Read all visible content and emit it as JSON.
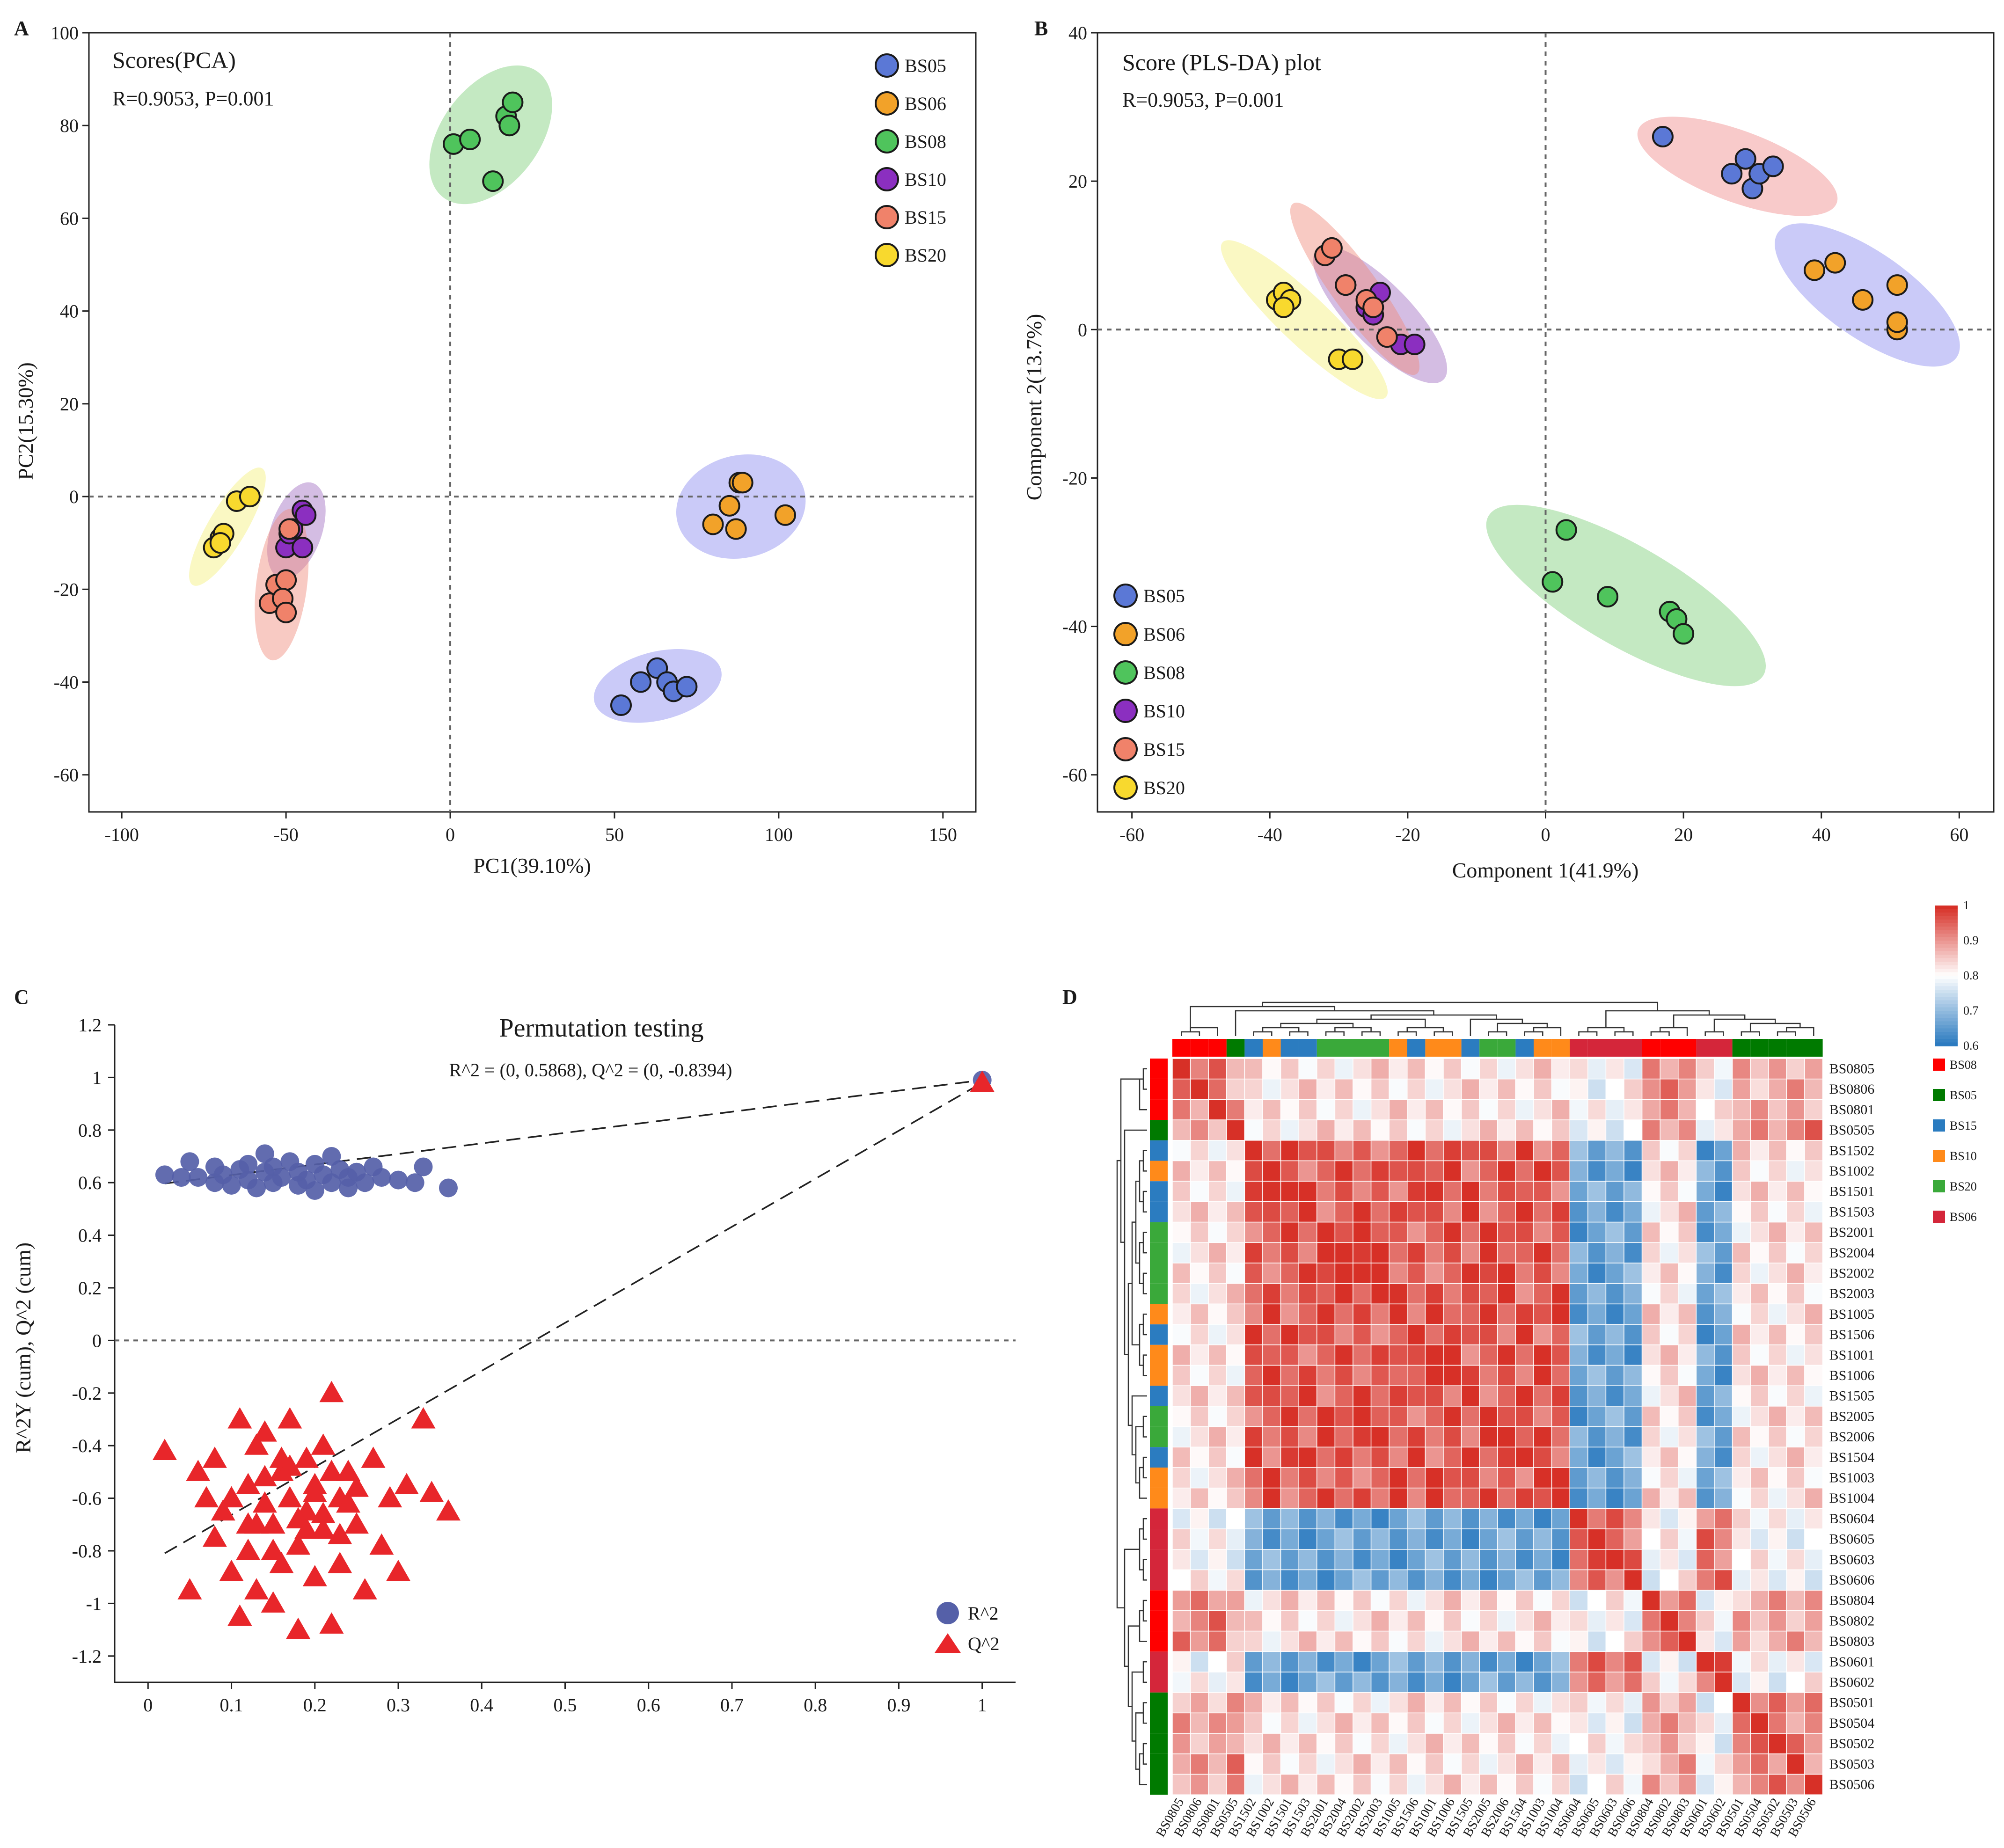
{
  "colors": {
    "BS05": "#5b78d6",
    "BS06": "#f2a229",
    "BS08": "#4fc45c",
    "BS10": "#8b2fc0",
    "BS15": "#f0826a",
    "BS20": "#f8d92e",
    "ell_BS05": "#8a8af0",
    "ell_BS06": "#8a8af0",
    "ell_BS08": "#7dcf78",
    "ell_BS10": "#a06cc0",
    "ell_BS15": "#f08a7a",
    "ell_BS20": "#f5ef7a",
    "ell_pls_BS05": "#f08a8a",
    "r2": "#5560a8",
    "q2": "#e8262a",
    "heat_high": "#d73027",
    "heat_mid": "#ffffff",
    "heat_low": "#2c7bc0"
  },
  "chart_data": [
    {
      "type": "scatter",
      "panel_label": "A",
      "title": "Scores(PCA)",
      "subtitle": "R=0.9053, P=0.001",
      "xlabel": "PC1(39.10%)",
      "ylabel": "PC2(15.30%)",
      "xlim": [
        -110,
        160
      ],
      "ylim": [
        -68,
        100
      ],
      "xticks": [
        -100,
        -50,
        0,
        50,
        100,
        150
      ],
      "yticks": [
        -60,
        -40,
        -20,
        0,
        20,
        40,
        60,
        80,
        100
      ],
      "legend": [
        "BS05",
        "BS06",
        "BS08",
        "BS10",
        "BS15",
        "BS20"
      ],
      "series": [
        {
          "name": "BS05",
          "x": [
            52,
            58,
            63,
            66,
            68,
            72
          ],
          "y": [
            -45,
            -40,
            -37,
            -40,
            -42,
            -41
          ]
        },
        {
          "name": "BS06",
          "x": [
            80,
            85,
            88,
            89,
            87,
            102
          ],
          "y": [
            -6,
            -2,
            3,
            3,
            -7,
            -4
          ]
        },
        {
          "name": "BS08",
          "x": [
            1,
            6,
            13,
            17,
            18,
            19
          ],
          "y": [
            76,
            77,
            68,
            82,
            80,
            85
          ]
        },
        {
          "name": "BS10",
          "x": [
            -50,
            -49,
            -48,
            -45,
            -44,
            -45
          ],
          "y": [
            -11,
            -8,
            -7,
            -3,
            -4,
            -11
          ]
        },
        {
          "name": "BS15",
          "x": [
            -55,
            -53,
            -50,
            -49,
            -51,
            -50
          ],
          "y": [
            -23,
            -19,
            -18,
            -7,
            -22,
            -25
          ]
        },
        {
          "name": "BS20",
          "x": [
            -72,
            -70,
            -69,
            -65,
            -61,
            -70
          ],
          "y": [
            -11,
            -9,
            -8,
            -1,
            0,
            -10
          ]
        }
      ]
    },
    {
      "type": "scatter",
      "panel_label": "B",
      "title": "Score (PLS-DA) plot",
      "subtitle": "R=0.9053, P=0.001",
      "xlabel": "Component 1(41.9%)",
      "ylabel": "Component 2(13.7%)",
      "xlim": [
        -65,
        65
      ],
      "ylim": [
        -65,
        40
      ],
      "xticks": [
        -60,
        -40,
        -20,
        0,
        20,
        40,
        60
      ],
      "yticks": [
        -60,
        -40,
        -20,
        0,
        20,
        40
      ],
      "legend": [
        "BS05",
        "BS06",
        "BS08",
        "BS10",
        "BS15",
        "BS20"
      ],
      "series": [
        {
          "name": "BS05",
          "x": [
            17,
            27,
            29,
            30,
            31,
            33
          ],
          "y": [
            26,
            21,
            23,
            19,
            21,
            22
          ]
        },
        {
          "name": "BS06",
          "x": [
            39,
            42,
            46,
            51,
            51,
            51
          ],
          "y": [
            8,
            9,
            4,
            6,
            0,
            1
          ]
        },
        {
          "name": "BS08",
          "x": [
            1,
            3,
            9,
            18,
            19,
            20
          ],
          "y": [
            -34,
            -27,
            -36,
            -38,
            -39,
            -41
          ]
        },
        {
          "name": "BS10",
          "x": [
            -29,
            -26,
            -25,
            -24,
            -21,
            -19
          ],
          "y": [
            6,
            3,
            2,
            5,
            -2,
            -2
          ]
        },
        {
          "name": "BS15",
          "x": [
            -32,
            -31,
            -29,
            -26,
            -23,
            -25
          ],
          "y": [
            10,
            11,
            6,
            4,
            -1,
            3
          ]
        },
        {
          "name": "BS20",
          "x": [
            -39,
            -38,
            -37,
            -30,
            -28,
            -38
          ],
          "y": [
            4,
            5,
            4,
            -4,
            -4,
            3
          ]
        }
      ]
    },
    {
      "type": "scatter",
      "panel_label": "C",
      "title": "Permutation testing",
      "subtitle": "R^2 = (0, 0.5868), Q^2 = (0, -0.8394)",
      "xlabel": "",
      "ylabel": "R^2Y (cum), Q^2 (cum)",
      "xlim": [
        -0.04,
        1.04
      ],
      "ylim": [
        -1.3,
        1.2
      ],
      "xticks": [
        0,
        0.1,
        0.2,
        0.3,
        0.4,
        0.5,
        0.6,
        0.7,
        0.8,
        0.9,
        1
      ],
      "yticks": [
        -1.2,
        -1,
        -0.8,
        -0.6,
        -0.4,
        -0.2,
        0,
        0.2,
        0.4,
        0.6,
        0.8,
        1,
        1.2
      ],
      "ytick_labels": [
        "-1.2",
        "-1",
        "-0.8",
        "-0.6",
        "-0.4",
        "-0.2",
        "0",
        "0.2",
        "0.4",
        "0.6",
        "0.8",
        "1",
        "1.2"
      ],
      "xtick_labels": [
        "0",
        "0.1",
        "0.2",
        "0.3",
        "0.4",
        "0.5",
        "0.6",
        "0.7",
        "0.8",
        "0.9",
        "1"
      ],
      "legend": [
        "R^2",
        "Q^2"
      ],
      "r2_line": {
        "intercept": 0.5868,
        "end": [
          1,
          0.99
        ]
      },
      "q2_line": {
        "intercept": -0.8394,
        "end": [
          1,
          0.98
        ]
      },
      "series": [
        {
          "name": "R^2",
          "marker": "circle",
          "x": [
            0.02,
            0.04,
            0.05,
            0.06,
            0.08,
            0.08,
            0.09,
            0.1,
            0.11,
            0.12,
            0.12,
            0.13,
            0.14,
            0.14,
            0.15,
            0.15,
            0.16,
            0.17,
            0.18,
            0.18,
            0.19,
            0.2,
            0.2,
            0.21,
            0.22,
            0.22,
            0.23,
            0.24,
            0.24,
            0.25,
            0.26,
            0.27,
            0.28,
            0.3,
            0.32,
            0.33,
            0.36,
            1.0
          ],
          "y": [
            0.63,
            0.62,
            0.68,
            0.62,
            0.66,
            0.6,
            0.63,
            0.59,
            0.65,
            0.61,
            0.67,
            0.58,
            0.64,
            0.71,
            0.6,
            0.66,
            0.62,
            0.68,
            0.59,
            0.64,
            0.61,
            0.67,
            0.57,
            0.63,
            0.7,
            0.6,
            0.65,
            0.62,
            0.58,
            0.64,
            0.6,
            0.66,
            0.62,
            0.61,
            0.6,
            0.66,
            0.58,
            0.99
          ]
        },
        {
          "name": "Q^2",
          "marker": "triangle",
          "x": [
            0.02,
            0.05,
            0.06,
            0.07,
            0.08,
            0.08,
            0.09,
            0.1,
            0.11,
            0.11,
            0.12,
            0.12,
            0.13,
            0.13,
            0.14,
            0.14,
            0.15,
            0.15,
            0.16,
            0.16,
            0.17,
            0.17,
            0.18,
            0.18,
            0.19,
            0.19,
            0.2,
            0.2,
            0.21,
            0.21,
            0.22,
            0.22,
            0.23,
            0.23,
            0.24,
            0.25,
            0.26,
            0.27,
            0.28,
            0.29,
            0.3,
            0.31,
            0.33,
            0.34,
            0.36,
            0.1,
            0.12,
            0.14,
            0.16,
            0.18,
            0.2,
            0.22,
            0.24,
            0.15,
            0.17,
            0.19,
            0.21,
            0.23,
            0.13,
            0.25,
            1.0
          ],
          "y": [
            -0.42,
            -0.95,
            -0.5,
            -0.6,
            -0.75,
            -0.45,
            -0.65,
            -0.88,
            -0.3,
            -1.05,
            -0.55,
            -0.8,
            -0.4,
            -0.95,
            -0.62,
            -0.35,
            -0.7,
            -1.0,
            -0.5,
            -0.85,
            -0.6,
            -0.3,
            -0.78,
            -1.1,
            -0.45,
            -0.65,
            -0.9,
            -0.55,
            -0.4,
            -0.72,
            -0.2,
            -1.08,
            -0.6,
            -0.85,
            -0.5,
            -0.7,
            -0.95,
            -0.45,
            -0.78,
            -0.6,
            -0.88,
            -0.55,
            -0.3,
            -0.58,
            -0.65,
            -0.6,
            -0.7,
            -0.52,
            -0.45,
            -0.68,
            -0.58,
            -0.5,
            -0.62,
            -0.8,
            -0.48,
            -0.72,
            -0.66,
            -0.74,
            -0.7,
            -0.56,
            0.98
          ]
        }
      ]
    },
    {
      "type": "heatmap",
      "panel_label": "D",
      "rows": [
        "BS0805",
        "BS0806",
        "BS0801",
        "BS0505",
        "BS1502",
        "BS1002",
        "BS1501",
        "BS1503",
        "BS2001",
        "BS2004",
        "BS2002",
        "BS2003",
        "BS1005",
        "BS1506",
        "BS1001",
        "BS1006",
        "BS1505",
        "BS2005",
        "BS2006",
        "BS1504",
        "BS1003",
        "BS1004",
        "BS0604",
        "BS0605",
        "BS0603",
        "BS0606",
        "BS0804",
        "BS0802",
        "BS0803",
        "BS0601",
        "BS0602",
        "BS0501",
        "BS0504",
        "BS0502",
        "BS0503",
        "BS0506"
      ],
      "groups": [
        "BS08",
        "BS08",
        "BS08",
        "BS05",
        "BS15",
        "BS10",
        "BS15",
        "BS15",
        "BS20",
        "BS20",
        "BS20",
        "BS20",
        "BS10",
        "BS15",
        "BS10",
        "BS10",
        "BS15",
        "BS20",
        "BS20",
        "BS15",
        "BS10",
        "BS10",
        "BS06",
        "BS06",
        "BS06",
        "BS06",
        "BS08",
        "BS08",
        "BS08",
        "BS06",
        "BS06",
        "BS05",
        "BS05",
        "BS05",
        "BS05",
        "BS05"
      ],
      "block_of_group": {
        "BS08": 0,
        "BS05": 0,
        "BS15": 1,
        "BS10": 1,
        "BS20": 1,
        "BS06": 2
      },
      "block_corr": [
        [
          0.88,
          0.83,
          0.8
        ],
        [
          0.83,
          0.95,
          0.66
        ],
        [
          0.8,
          0.66,
          0.9
        ]
      ],
      "legend": [
        "BS08",
        "BS05",
        "BS15",
        "BS10",
        "BS20",
        "BS06"
      ],
      "legend_colors": [
        "#ff0000",
        "#007a00",
        "#2b7cc0",
        "#ff8a1a",
        "#3aa93a",
        "#d4263a"
      ],
      "colorbar": {
        "min": 0.6,
        "max": 1,
        "labels": [
          "1",
          "0.9",
          "0.8",
          "0.7",
          "0.6"
        ]
      }
    }
  ]
}
